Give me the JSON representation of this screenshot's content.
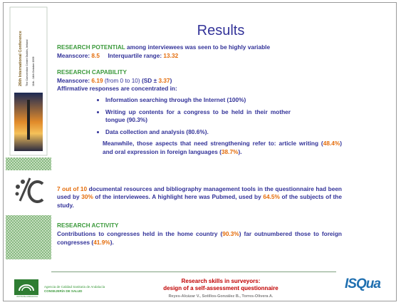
{
  "colors": {
    "text": "#333399",
    "highlight": "#e46c0a",
    "heading": "#3c9a3c",
    "title": "#333399",
    "footer_title": "#c00000",
    "footer_authors": "#808080"
  },
  "title": "Results",
  "sidebar": {
    "poster_lines": [
      "26th International Conference",
      "The Convention Centre Dublin, Ireland",
      "11th - 14th October 2009"
    ]
  },
  "paragraphs": [
    {
      "segments": [
        {
          "text": "RESEARCH POTENTIAL",
          "color": "#3c9a3c"
        },
        {
          "text": " among interviewees was seen to be highly variable"
        }
      ]
    },
    {
      "segments": [
        {
          "text": "Meanscore: "
        },
        {
          "text": "8.5",
          "color": "#e46c0a"
        },
        {
          "text": "     Interquartile range: "
        },
        {
          "text": "13.32",
          "color": "#e46c0a"
        }
      ]
    },
    {
      "segments": [
        {
          "text": "RESEARCH CAPABILITY",
          "color": "#3c9a3c"
        }
      ],
      "gap": true
    },
    {
      "segments": [
        {
          "text": "Meanscore: "
        },
        {
          "text": "6.19",
          "color": "#e46c0a"
        },
        {
          "text": " (from 0 to 10) ",
          "weight": "normal"
        },
        {
          "text": "(SD ± "
        },
        {
          "text": "3.37",
          "color": "#e46c0a"
        },
        {
          "text": ")"
        }
      ]
    },
    {
      "segments": [
        {
          "text": "Affirmative responses are concentrated in:"
        }
      ]
    }
  ],
  "bullets": [
    "Information searching through the Internet (100%)",
    "Writing up contents for a congress to be held in their mother tongue (90.3%)",
    "Data collection and analysis (80.6%)."
  ],
  "blocks": [
    {
      "indent": true,
      "segments": [
        {
          "text": "Meanwhile, those aspects that need strengthening refer to: article writing ("
        },
        {
          "text": "48.4%",
          "color": "#e46c0a"
        },
        {
          "text": ") and oral expression in foreign languages ("
        },
        {
          "text": "38.7%",
          "color": "#e46c0a"
        },
        {
          "text": ")."
        }
      ]
    },
    {
      "segments": [
        {
          "text": "7 out of 10",
          "color": "#e46c0a"
        },
        {
          "text": " documental resources and bibliography management tools in the questionnaire had been used by "
        },
        {
          "text": "30%",
          "color": "#e46c0a"
        },
        {
          "text": " of the interviewees. A highlight here was Pubmed, used by "
        },
        {
          "text": "64.5%",
          "color": "#e46c0a"
        },
        {
          "text": " of the subjects of the study."
        }
      ]
    },
    {
      "segments": [
        {
          "text": "RESEARCH ACTIVITY",
          "color": "#3c9a3c"
        }
      ]
    },
    {
      "segments": [
        {
          "text": "Contributions to congresses held in the home country ("
        },
        {
          "text": "90.3%",
          "color": "#e46c0a"
        },
        {
          "text": ") far outnumbered those to foreign congresses ("
        },
        {
          "text": "41.9%",
          "color": "#e46c0a"
        },
        {
          "text": ")."
        }
      ]
    }
  ],
  "footer": {
    "agency": "Agencia de Calidad Sanitaria de Andalucía",
    "ministry": "CONSEJERÍA DE SALUD",
    "junta": "JUNTA DE ANDALUCIA",
    "title_lines": [
      "Research skills in surveyors:",
      "design of a self-assessment questionnaire"
    ],
    "authors": "Reyes-Alcázar V., Sotillos-González B., Torres-Olivera A.",
    "logo": "ISQua"
  }
}
